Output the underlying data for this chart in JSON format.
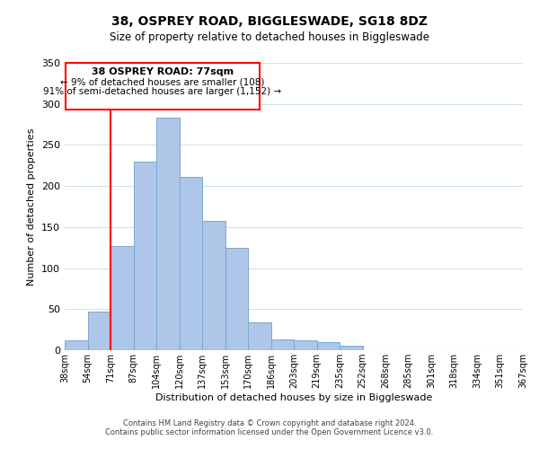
{
  "title1": "38, OSPREY ROAD, BIGGLESWADE, SG18 8DZ",
  "title2": "Size of property relative to detached houses in Biggleswade",
  "xlabel": "Distribution of detached houses by size in Biggleswade",
  "ylabel": "Number of detached properties",
  "footer1": "Contains HM Land Registry data © Crown copyright and database right 2024.",
  "footer2": "Contains public sector information licensed under the Open Government Licence v3.0.",
  "bin_labels": [
    "38sqm",
    "54sqm",
    "71sqm",
    "87sqm",
    "104sqm",
    "120sqm",
    "137sqm",
    "153sqm",
    "170sqm",
    "186sqm",
    "203sqm",
    "219sqm",
    "235sqm",
    "252sqm",
    "268sqm",
    "285sqm",
    "301sqm",
    "318sqm",
    "334sqm",
    "351sqm",
    "367sqm"
  ],
  "bar_heights": [
    12,
    47,
    127,
    230,
    283,
    211,
    157,
    125,
    34,
    13,
    12,
    10,
    6,
    0,
    0,
    0,
    0,
    0,
    0,
    0
  ],
  "bar_color": "#aec6e8",
  "bar_edge_color": "#7aa8d0",
  "vline_x": 2,
  "vline_color": "red",
  "annotation_title": "38 OSPREY ROAD: 77sqm",
  "annotation_line1": "← 9% of detached houses are smaller (108)",
  "annotation_line2": "91% of semi-detached houses are larger (1,152) →",
  "annotation_box_color": "white",
  "annotation_box_edge": "red",
  "ylim": [
    0,
    350
  ],
  "yticks": [
    0,
    50,
    100,
    150,
    200,
    250,
    300,
    350
  ]
}
